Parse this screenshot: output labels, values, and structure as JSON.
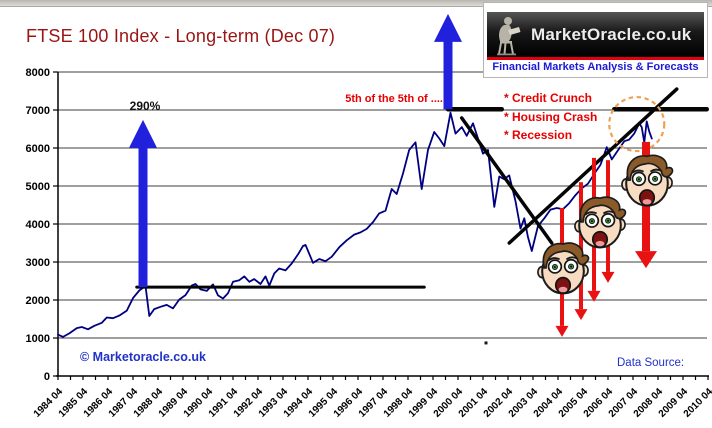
{
  "header": {
    "title": "FTSE 100 Index - Long-term (Dec 07)"
  },
  "logo": {
    "site_name": "MarketOracle.co.uk",
    "tagline": "Financial Markets Analysis & Forecasts"
  },
  "footer": {
    "copyright": "© Marketoracle.co.uk",
    "data_source_label": "Data Source:"
  },
  "colors": {
    "title_red": "#9b1414",
    "annotation_red": "#e80000",
    "price_navy": "#000080",
    "arrow_blue": "#2121dd",
    "arrow_red": "#e81212",
    "ellipse_orange": "#f0a055",
    "link_blue": "#2231c8"
  },
  "chart_data": {
    "type": "line",
    "title": "FTSE 100 Index - Long-term (Dec 07)",
    "xlabel": "",
    "ylabel": "",
    "xlim": [
      1984.25,
      2010.25
    ],
    "ylim": [
      0,
      8000
    ],
    "grid": true,
    "y_ticks": [
      0,
      1000,
      2000,
      3000,
      4000,
      5000,
      6000,
      7000,
      8000
    ],
    "x_tick_labels": [
      "1984 04",
      "1985 04",
      "1986 04",
      "1987 04",
      "1988 04",
      "1989 04",
      "1990 04",
      "1991 04",
      "1992 04",
      "1993 04",
      "1994 04",
      "1995 04",
      "1996 04",
      "1997 04",
      "1998 04",
      "1999 04",
      "2000 04",
      "2001 04",
      "2002 04",
      "2003 04",
      "2004 04",
      "2005 04",
      "2006 04",
      "2007 04",
      "2008 04",
      "2009 04",
      "2010 04"
    ],
    "series": [
      {
        "name": "FTSE 100 Index",
        "color": "#000080",
        "points": [
          [
            1984.25,
            1090
          ],
          [
            1984.45,
            1030
          ],
          [
            1984.7,
            1120
          ],
          [
            1985.0,
            1260
          ],
          [
            1985.2,
            1290
          ],
          [
            1985.45,
            1230
          ],
          [
            1985.7,
            1320
          ],
          [
            1986.0,
            1400
          ],
          [
            1986.2,
            1540
          ],
          [
            1986.45,
            1520
          ],
          [
            1986.7,
            1590
          ],
          [
            1987.0,
            1720
          ],
          [
            1987.25,
            2050
          ],
          [
            1987.5,
            2250
          ],
          [
            1987.75,
            2370
          ],
          [
            1987.9,
            1580
          ],
          [
            1988.1,
            1760
          ],
          [
            1988.35,
            1820
          ],
          [
            1988.6,
            1870
          ],
          [
            1988.85,
            1780
          ],
          [
            1989.1,
            2010
          ],
          [
            1989.35,
            2130
          ],
          [
            1989.6,
            2380
          ],
          [
            1989.75,
            2420
          ],
          [
            1989.95,
            2280
          ],
          [
            1990.2,
            2240
          ],
          [
            1990.45,
            2410
          ],
          [
            1990.65,
            2120
          ],
          [
            1990.85,
            2040
          ],
          [
            1991.05,
            2180
          ],
          [
            1991.25,
            2480
          ],
          [
            1991.5,
            2520
          ],
          [
            1991.7,
            2620
          ],
          [
            1991.9,
            2480
          ],
          [
            1992.1,
            2550
          ],
          [
            1992.35,
            2420
          ],
          [
            1992.55,
            2620
          ],
          [
            1992.7,
            2380
          ],
          [
            1992.9,
            2700
          ],
          [
            1993.1,
            2830
          ],
          [
            1993.35,
            2780
          ],
          [
            1993.6,
            2960
          ],
          [
            1993.85,
            3200
          ],
          [
            1994.05,
            3420
          ],
          [
            1994.15,
            3450
          ],
          [
            1994.45,
            2980
          ],
          [
            1994.7,
            3080
          ],
          [
            1994.95,
            3020
          ],
          [
            1995.2,
            3140
          ],
          [
            1995.5,
            3390
          ],
          [
            1995.8,
            3570
          ],
          [
            1996.1,
            3720
          ],
          [
            1996.35,
            3780
          ],
          [
            1996.6,
            3870
          ],
          [
            1996.85,
            4050
          ],
          [
            1997.1,
            4280
          ],
          [
            1997.35,
            4350
          ],
          [
            1997.6,
            4920
          ],
          [
            1997.8,
            4790
          ],
          [
            1998.05,
            5330
          ],
          [
            1998.3,
            5950
          ],
          [
            1998.55,
            6150
          ],
          [
            1998.8,
            4920
          ],
          [
            1999.05,
            5950
          ],
          [
            1999.3,
            6420
          ],
          [
            1999.5,
            6250
          ],
          [
            1999.7,
            6050
          ],
          [
            1999.95,
            6930
          ],
          [
            2000.15,
            6380
          ],
          [
            2000.4,
            6550
          ],
          [
            2000.6,
            6320
          ],
          [
            2000.85,
            6650
          ],
          [
            2001.05,
            6250
          ],
          [
            2001.25,
            5850
          ],
          [
            2001.45,
            5950
          ],
          [
            2001.7,
            4450
          ],
          [
            2001.9,
            5250
          ],
          [
            2002.1,
            5180
          ],
          [
            2002.3,
            5280
          ],
          [
            2002.55,
            4600
          ],
          [
            2002.75,
            3880
          ],
          [
            2002.9,
            4150
          ],
          [
            2003.05,
            3650
          ],
          [
            2003.2,
            3290
          ],
          [
            2003.45,
            3950
          ],
          [
            2003.7,
            4150
          ],
          [
            2003.95,
            4380
          ],
          [
            2004.2,
            4420
          ],
          [
            2004.45,
            4390
          ],
          [
            2004.7,
            4550
          ],
          [
            2004.95,
            4760
          ],
          [
            2005.2,
            4940
          ],
          [
            2005.45,
            5060
          ],
          [
            2005.7,
            5320
          ],
          [
            2005.95,
            5560
          ],
          [
            2006.2,
            6020
          ],
          [
            2006.4,
            5700
          ],
          [
            2006.65,
            5940
          ],
          [
            2006.9,
            6180
          ],
          [
            2007.1,
            6220
          ],
          [
            2007.3,
            6380
          ],
          [
            2007.5,
            6650
          ],
          [
            2007.6,
            6550
          ],
          [
            2007.7,
            6150
          ],
          [
            2007.8,
            6700
          ],
          [
            2007.9,
            6430
          ],
          [
            2008.0,
            6250
          ]
        ]
      }
    ],
    "annotations": {
      "labels": {
        "gain": "290%",
        "wave": "5th of the 5th of ....",
        "crisis": [
          "* Credit Crunch",
          "* Housing Crash",
          "* Recession"
        ]
      },
      "support_line": {
        "v": 2340,
        "t1": 1987.4,
        "t2": 1998.9
      },
      "resistance_lines": [
        {
          "v": 7020,
          "t1": 1999.85,
          "t2": 2002.0
        },
        {
          "v": 7020,
          "t1": 2006.5,
          "t2": 2010.2
        }
      ],
      "trend_lines": [
        {
          "t1": 2000.4,
          "v1": 6790,
          "t2": 2004.0,
          "v2": 3500
        },
        {
          "t1": 2002.3,
          "v1": 3500,
          "t2": 2009.0,
          "v2": 7550
        }
      ],
      "up_arrows": [
        {
          "t": 1987.65,
          "v1": 2340,
          "v2": 6740
        },
        {
          "t": 1999.85,
          "v1": 7020,
          "v2": 9530
        }
      ],
      "down_arrows": [
        {
          "t": 2004.41,
          "v1": 4420,
          "v2": 1030,
          "thick": false
        },
        {
          "t": 2005.17,
          "v1": 5100,
          "v2": 1470,
          "thick": false
        },
        {
          "t": 2005.69,
          "v1": 5740,
          "v2": 1950,
          "thick": false
        },
        {
          "t": 2006.25,
          "v1": 5680,
          "v2": 2450,
          "thick": false
        },
        {
          "t": 2007.77,
          "v1": 6160,
          "v2": 2840,
          "thick": true
        }
      ],
      "ellipse": {
        "t": 2007.4,
        "v": 6630,
        "rt": 1.1,
        "rv": 710
      },
      "faces": [
        {
          "t": 2004.45,
          "v": 2820
        },
        {
          "t": 2005.93,
          "v": 4030
        },
        {
          "t": 2007.81,
          "v": 5130
        }
      ],
      "dot": {
        "t": 2001.37,
        "v": 870
      }
    }
  }
}
